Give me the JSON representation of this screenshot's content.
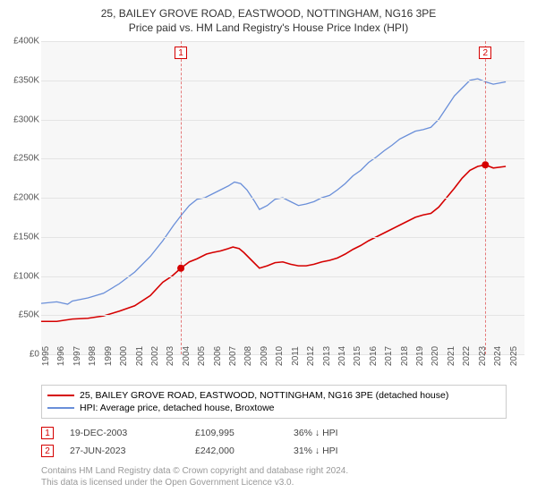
{
  "title": "25, BAILEY GROVE ROAD, EASTWOOD, NOTTINGHAM, NG16 3PE",
  "subtitle": "Price paid vs. HM Land Registry's House Price Index (HPI)",
  "chart": {
    "type": "line",
    "background_color": "#f7f7f7",
    "grid_color": "#e4e4e4",
    "axis_color": "#bbbbbb",
    "x_start": 1995,
    "x_end": 2026,
    "xticks": [
      1995,
      1996,
      1997,
      1998,
      1999,
      2000,
      2001,
      2002,
      2003,
      2004,
      2005,
      2006,
      2007,
      2008,
      2009,
      2010,
      2011,
      2012,
      2013,
      2014,
      2015,
      2016,
      2017,
      2018,
      2019,
      2020,
      2021,
      2022,
      2023,
      2024,
      2025
    ],
    "ylim": [
      0,
      400000
    ],
    "yticks": [
      0,
      50000,
      100000,
      150000,
      200000,
      250000,
      300000,
      350000,
      400000
    ],
    "ytick_labels": [
      "£0",
      "£50K",
      "£100K",
      "£150K",
      "£200K",
      "£250K",
      "£300K",
      "£350K",
      "£400K"
    ],
    "series": [
      {
        "name": "red",
        "color": "#d50000",
        "width": 1.6,
        "data": [
          [
            1995.0,
            42000
          ],
          [
            1996.0,
            42000
          ],
          [
            1997.0,
            45000
          ],
          [
            1998.0,
            46000
          ],
          [
            1999.0,
            49000
          ],
          [
            2000.0,
            55000
          ],
          [
            2001.0,
            62000
          ],
          [
            2002.0,
            75000
          ],
          [
            2002.8,
            92000
          ],
          [
            2003.4,
            100000
          ],
          [
            2003.96,
            109995
          ],
          [
            2004.5,
            118000
          ],
          [
            2005.0,
            122000
          ],
          [
            2005.6,
            128000
          ],
          [
            2006.0,
            130000
          ],
          [
            2006.5,
            132000
          ],
          [
            2007.0,
            135000
          ],
          [
            2007.3,
            137000
          ],
          [
            2007.7,
            135000
          ],
          [
            2008.0,
            130000
          ],
          [
            2008.5,
            120000
          ],
          [
            2009.0,
            110000
          ],
          [
            2009.5,
            113000
          ],
          [
            2010.0,
            117000
          ],
          [
            2010.5,
            118000
          ],
          [
            2011.0,
            115000
          ],
          [
            2011.5,
            113000
          ],
          [
            2012.0,
            113000
          ],
          [
            2012.5,
            115000
          ],
          [
            2013.0,
            118000
          ],
          [
            2013.5,
            120000
          ],
          [
            2014.0,
            123000
          ],
          [
            2014.5,
            128000
          ],
          [
            2015.0,
            134000
          ],
          [
            2015.5,
            139000
          ],
          [
            2016.0,
            145000
          ],
          [
            2016.5,
            150000
          ],
          [
            2017.0,
            155000
          ],
          [
            2017.5,
            160000
          ],
          [
            2018.0,
            165000
          ],
          [
            2018.5,
            170000
          ],
          [
            2019.0,
            175000
          ],
          [
            2019.5,
            178000
          ],
          [
            2020.0,
            180000
          ],
          [
            2020.5,
            188000
          ],
          [
            2021.0,
            200000
          ],
          [
            2021.5,
            212000
          ],
          [
            2022.0,
            225000
          ],
          [
            2022.5,
            235000
          ],
          [
            2023.0,
            240000
          ],
          [
            2023.49,
            242000
          ],
          [
            2024.0,
            238000
          ],
          [
            2024.8,
            240000
          ]
        ]
      },
      {
        "name": "blue",
        "color": "#6a8fd9",
        "width": 1.3,
        "data": [
          [
            1995.0,
            65000
          ],
          [
            1996.0,
            67000
          ],
          [
            1996.7,
            64000
          ],
          [
            1997.0,
            68000
          ],
          [
            1998.0,
            72000
          ],
          [
            1999.0,
            78000
          ],
          [
            2000.0,
            90000
          ],
          [
            2001.0,
            105000
          ],
          [
            2002.0,
            125000
          ],
          [
            2002.8,
            145000
          ],
          [
            2003.5,
            165000
          ],
          [
            2004.0,
            178000
          ],
          [
            2004.5,
            190000
          ],
          [
            2005.0,
            198000
          ],
          [
            2005.5,
            200000
          ],
          [
            2006.0,
            205000
          ],
          [
            2006.5,
            210000
          ],
          [
            2007.0,
            215000
          ],
          [
            2007.4,
            220000
          ],
          [
            2007.8,
            218000
          ],
          [
            2008.2,
            210000
          ],
          [
            2008.7,
            195000
          ],
          [
            2009.0,
            185000
          ],
          [
            2009.5,
            190000
          ],
          [
            2010.0,
            198000
          ],
          [
            2010.5,
            200000
          ],
          [
            2011.0,
            195000
          ],
          [
            2011.5,
            190000
          ],
          [
            2012.0,
            192000
          ],
          [
            2012.5,
            195000
          ],
          [
            2013.0,
            200000
          ],
          [
            2013.5,
            203000
          ],
          [
            2014.0,
            210000
          ],
          [
            2014.5,
            218000
          ],
          [
            2015.0,
            228000
          ],
          [
            2015.5,
            235000
          ],
          [
            2016.0,
            245000
          ],
          [
            2016.5,
            252000
          ],
          [
            2017.0,
            260000
          ],
          [
            2017.5,
            267000
          ],
          [
            2018.0,
            275000
          ],
          [
            2018.5,
            280000
          ],
          [
            2019.0,
            285000
          ],
          [
            2019.5,
            287000
          ],
          [
            2020.0,
            290000
          ],
          [
            2020.5,
            300000
          ],
          [
            2021.0,
            315000
          ],
          [
            2021.5,
            330000
          ],
          [
            2022.0,
            340000
          ],
          [
            2022.5,
            350000
          ],
          [
            2023.0,
            352000
          ],
          [
            2023.5,
            348000
          ],
          [
            2024.0,
            345000
          ],
          [
            2024.8,
            348000
          ]
        ]
      }
    ],
    "sale_markers": [
      {
        "label": "1",
        "year": 2003.96,
        "value": 109995,
        "color": "#d50000"
      },
      {
        "label": "2",
        "year": 2023.49,
        "value": 242000,
        "color": "#d50000"
      }
    ]
  },
  "legend": {
    "items": [
      {
        "color": "#d50000",
        "label": "25, BAILEY GROVE ROAD, EASTWOOD, NOTTINGHAM, NG16 3PE (detached house)"
      },
      {
        "color": "#6a8fd9",
        "label": "HPI: Average price, detached house, Broxtowe"
      }
    ]
  },
  "sale_rows": [
    {
      "n": "1",
      "color": "#d50000",
      "date": "19-DEC-2003",
      "price": "£109,995",
      "diff": "36% ↓ HPI"
    },
    {
      "n": "2",
      "color": "#d50000",
      "date": "27-JUN-2023",
      "price": "£242,000",
      "diff": "31% ↓ HPI"
    }
  ],
  "footer": {
    "line1": "Contains HM Land Registry data © Crown copyright and database right 2024.",
    "line2": "This data is licensed under the Open Government Licence v3.0."
  }
}
